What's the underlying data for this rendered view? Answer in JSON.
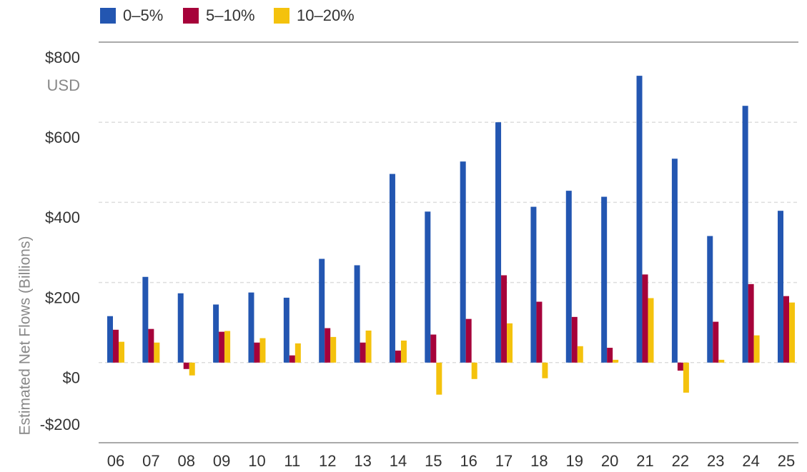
{
  "chart_data": {
    "type": "bar",
    "y_label": "Estimated Net Flows (Billions)",
    "y_unit": "USD",
    "categories": [
      "06",
      "07",
      "08",
      "09",
      "10",
      "11",
      "12",
      "13",
      "14",
      "15",
      "16",
      "17",
      "18",
      "19",
      "20",
      "21",
      "22",
      "23",
      "24",
      "25"
    ],
    "series": [
      {
        "name": "0–5%",
        "color": "#2356b1",
        "values": [
          116,
          214,
          173,
          145,
          175,
          162,
          259,
          243,
          471,
          377,
          502,
          600,
          389,
          429,
          414,
          716,
          509,
          316,
          641,
          379
        ]
      },
      {
        "name": "5–10%",
        "color": "#a6023a",
        "values": [
          82,
          84,
          -16,
          77,
          50,
          18,
          86,
          50,
          30,
          70,
          109,
          218,
          152,
          114,
          37,
          220,
          -20,
          102,
          196,
          166
        ]
      },
      {
        "name": "10–20%",
        "color": "#f4c20d",
        "values": [
          52,
          50,
          -32,
          79,
          61,
          48,
          64,
          80,
          55,
          -80,
          -41,
          98,
          -39,
          41,
          7,
          161,
          -75,
          7,
          68,
          150
        ]
      }
    ],
    "ylim": [
      -200,
      800
    ],
    "yticks": [
      {
        "value": 800,
        "label": "$800"
      },
      {
        "value": 600,
        "label": "$600"
      },
      {
        "value": 400,
        "label": "$400"
      },
      {
        "value": 200,
        "label": "$200"
      },
      {
        "value": 0,
        "label": "$0"
      },
      {
        "value": -200,
        "label": "-$200"
      }
    ],
    "grid": true,
    "legend": "top-left"
  }
}
